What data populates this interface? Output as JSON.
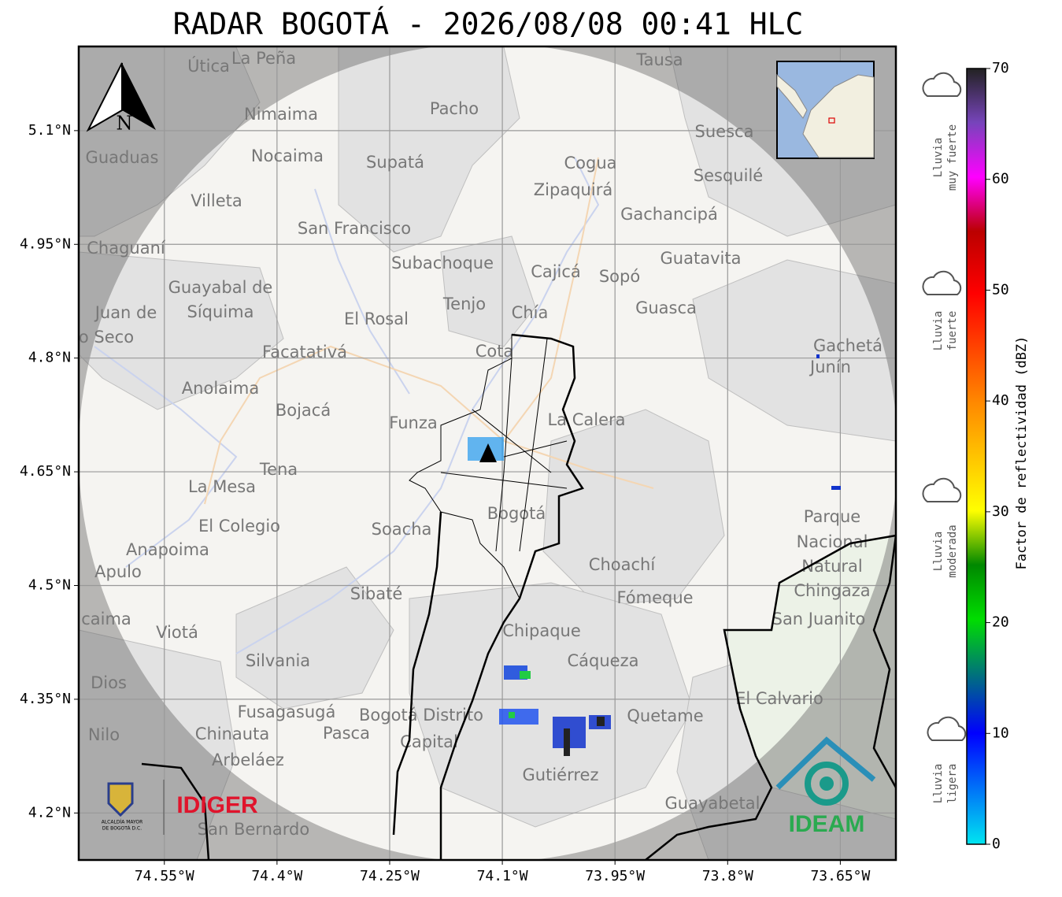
{
  "title": "RADAR BOGOTÁ - 2026/08/08 00:41 HLC",
  "map": {
    "xlim": [
      -74.664,
      -73.576
    ],
    "ylim": [
      4.138,
      5.211
    ],
    "xticks": [
      {
        "value": -74.55,
        "label": "74.55°W"
      },
      {
        "value": -74.4,
        "label": "74.4°W"
      },
      {
        "value": -74.25,
        "label": "74.25°W"
      },
      {
        "value": -74.1,
        "label": "74.1°W"
      },
      {
        "value": -73.95,
        "label": "73.95°W"
      },
      {
        "value": -73.8,
        "label": "73.8°W"
      },
      {
        "value": -73.65,
        "label": "73.65°W"
      }
    ],
    "yticks": [
      {
        "value": 4.2,
        "label": "4.2°N"
      },
      {
        "value": 4.35,
        "label": "4.35°N"
      },
      {
        "value": 4.5,
        "label": "4.5°N"
      },
      {
        "value": 4.65,
        "label": "4.65°N"
      },
      {
        "value": 4.8,
        "label": "4.8°N"
      },
      {
        "value": 4.95,
        "label": "4.95°N"
      },
      {
        "value": 5.1,
        "label": "5.1°N"
      }
    ],
    "grid": true,
    "places": [
      "La Peña",
      "Útica",
      "Tausa",
      "Pacho",
      "Nimaima",
      "Guaduas",
      "Nocaima",
      "Supatá",
      "Suesca",
      "Cogua",
      "Sesquilé",
      "Zipaquirá",
      "Villeta",
      "San Francisco",
      "Gachancipá",
      "Chaguaní",
      "Guatavita",
      "Subachoque",
      "Cajicá",
      "Sopó",
      "Guayabal de",
      "Síquima",
      "Juan de",
      "o Seco",
      "Tenjo",
      "El Rosal",
      "Chía",
      "Guasca",
      "Facatativá",
      "Cota",
      "Gachetá",
      "Junín",
      "Anolaima",
      "Bojacá",
      "Funza",
      "La Calera",
      "Tena",
      "La Mesa",
      "Soacha",
      "Bogotá",
      "Parque",
      "Nacional",
      "Natural",
      "Chingaza",
      "El Colegio",
      "Anapoima",
      "Apulo",
      "Choachí",
      "Sibaté",
      "Fómeque",
      "San Juanito",
      "caima",
      "Chipaque",
      "Viotá",
      "Silvania",
      "Cáqueza",
      "Dios",
      "El Calvario",
      "Fusagasugá",
      "Bogotá Distrito",
      "Capital",
      "Quetame",
      "Nilo",
      "Chinauta",
      "Pasca",
      "Arbeláez",
      "Gutiérrez",
      "Guayabetal",
      "San Bernardo"
    ]
  },
  "north_label": "N",
  "colorbar": {
    "label": "Factor de reflectividad (dBZ)",
    "lim": [
      0,
      70
    ],
    "ticks": [
      0,
      10,
      20,
      30,
      40,
      50,
      60,
      70
    ]
  },
  "rain_legend": [
    [
      "Lluvia",
      "muy fuerte"
    ],
    [
      "Lluvia",
      "fuerte"
    ],
    [
      "Lluvia",
      "moderada"
    ],
    [
      "Lluvia",
      "ligera"
    ]
  ],
  "logos": {
    "alcaldia": [
      "ALCALDÍA MAYOR",
      "DE BOGOTÁ D.C."
    ],
    "idiger": "IDIGER",
    "ideam": "IDEAM"
  }
}
